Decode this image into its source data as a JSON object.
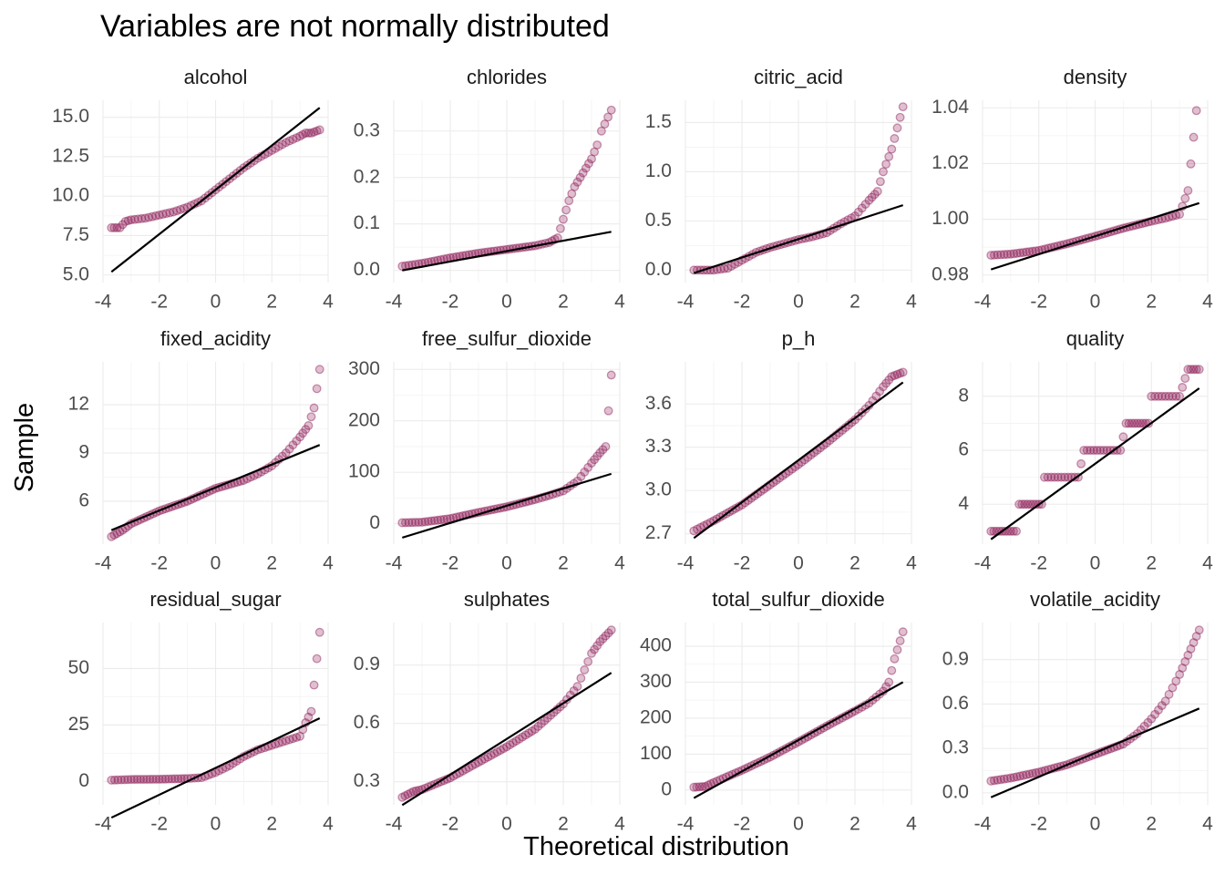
{
  "chart_data": {
    "type": "scatter",
    "subtype": "qq-plot facet grid",
    "title": "Variables are not normally distributed",
    "xlabel": "Theoretical distribution",
    "ylabel": "Sample",
    "xlim": [
      -4,
      4
    ],
    "x_ticks": [
      -4,
      -2,
      0,
      2,
      4
    ],
    "grid": true,
    "point_color": "#8b1a55",
    "line_color": "#000000",
    "panels": [
      {
        "name": "alcohol",
        "yrange": [
          5.0,
          15.6
        ],
        "yticks": [
          5.0,
          7.5,
          10.0,
          12.5,
          15.0
        ],
        "ytick_labels": [
          "5.0",
          "7.5",
          "10.0",
          "12.5",
          "15.0"
        ],
        "line": [
          [
            -3.7,
            5.2
          ],
          [
            3.7,
            15.6
          ]
        ],
        "points": [
          [
            -3.7,
            8.0
          ],
          [
            -3.4,
            8.0
          ],
          [
            -3.2,
            8.4
          ],
          [
            -3.0,
            8.5
          ],
          [
            -2.5,
            8.6
          ],
          [
            -2.0,
            8.8
          ],
          [
            -1.5,
            9.0
          ],
          [
            -1.0,
            9.3
          ],
          [
            -0.5,
            9.7
          ],
          [
            0.0,
            10.4
          ],
          [
            0.5,
            11.1
          ],
          [
            1.0,
            11.8
          ],
          [
            1.5,
            12.4
          ],
          [
            2.0,
            12.9
          ],
          [
            2.5,
            13.4
          ],
          [
            3.0,
            13.8
          ],
          [
            3.2,
            14.0
          ],
          [
            3.4,
            14.0
          ],
          [
            3.7,
            14.2
          ]
        ]
      },
      {
        "name": "chlorides",
        "yrange": [
          -0.01,
          0.35
        ],
        "yticks": [
          0.0,
          0.1,
          0.2,
          0.3
        ],
        "ytick_labels": [
          "0.0",
          "0.1",
          "0.2",
          "0.3"
        ],
        "line": [
          [
            -3.7,
            0.0
          ],
          [
            3.7,
            0.083
          ]
        ],
        "points": [
          [
            -3.7,
            0.009
          ],
          [
            -3.0,
            0.015
          ],
          [
            -2.0,
            0.027
          ],
          [
            -1.0,
            0.037
          ],
          [
            0.0,
            0.045
          ],
          [
            1.0,
            0.053
          ],
          [
            1.5,
            0.06
          ],
          [
            1.8,
            0.07
          ],
          [
            2.0,
            0.11
          ],
          [
            2.2,
            0.15
          ],
          [
            2.4,
            0.18
          ],
          [
            2.6,
            0.2
          ],
          [
            2.8,
            0.22
          ],
          [
            3.0,
            0.24
          ],
          [
            3.2,
            0.27
          ],
          [
            3.35,
            0.3
          ],
          [
            3.7,
            0.345
          ]
        ]
      },
      {
        "name": "citric_acid",
        "yrange": [
          -0.05,
          1.65
        ],
        "yticks": [
          0.0,
          0.5,
          1.0,
          1.5
        ],
        "ytick_labels": [
          "0.0",
          "0.5",
          "1.0",
          "1.5"
        ],
        "line": [
          [
            -3.7,
            -0.03
          ],
          [
            3.7,
            0.66
          ]
        ],
        "points": [
          [
            -3.7,
            0.0
          ],
          [
            -3.0,
            0.0
          ],
          [
            -2.5,
            0.02
          ],
          [
            -2.0,
            0.1
          ],
          [
            -1.5,
            0.18
          ],
          [
            -1.0,
            0.23
          ],
          [
            -0.5,
            0.27
          ],
          [
            0.0,
            0.31
          ],
          [
            0.5,
            0.34
          ],
          [
            1.0,
            0.38
          ],
          [
            1.5,
            0.47
          ],
          [
            2.0,
            0.55
          ],
          [
            2.5,
            0.71
          ],
          [
            2.8,
            0.8
          ],
          [
            3.0,
            1.0
          ],
          [
            3.3,
            1.23
          ],
          [
            3.7,
            1.66
          ]
        ]
      },
      {
        "name": "density",
        "yrange": [
          0.98,
          1.04
        ],
        "yticks": [
          0.98,
          1.0,
          1.02,
          1.04
        ],
        "ytick_labels": [
          "0.98",
          "1.00",
          "1.02",
          "1.04"
        ],
        "line": [
          [
            -3.7,
            0.982
          ],
          [
            3.7,
            1.0058
          ]
        ],
        "points": [
          [
            -3.7,
            0.9871
          ],
          [
            -3.0,
            0.9875
          ],
          [
            -2.0,
            0.9888
          ],
          [
            -1.0,
            0.9912
          ],
          [
            0.0,
            0.9939
          ],
          [
            1.0,
            0.9968
          ],
          [
            2.0,
            0.9993
          ],
          [
            2.5,
            1.0004
          ],
          [
            3.0,
            1.0018
          ],
          [
            3.3,
            1.0103
          ],
          [
            3.6,
            1.039
          ]
        ]
      },
      {
        "name": "fixed_acidity",
        "yrange": [
          3.8,
          14.2
        ],
        "yticks": [
          6,
          9,
          12
        ],
        "ytick_labels": [
          "6",
          "9",
          "12"
        ],
        "line": [
          [
            -3.7,
            4.2
          ],
          [
            3.7,
            9.5
          ]
        ],
        "points": [
          [
            -3.7,
            3.8
          ],
          [
            -3.3,
            4.2
          ],
          [
            -3.0,
            4.6
          ],
          [
            -2.0,
            5.4
          ],
          [
            -1.0,
            6.0
          ],
          [
            0.0,
            6.8
          ],
          [
            1.0,
            7.3
          ],
          [
            1.5,
            7.7
          ],
          [
            2.0,
            8.2
          ],
          [
            2.5,
            9.0
          ],
          [
            3.0,
            10.0
          ],
          [
            3.3,
            10.7
          ],
          [
            3.5,
            11.8
          ],
          [
            3.7,
            14.2
          ]
        ]
      },
      {
        "name": "free_sulfur_dioxide",
        "yrange": [
          -25,
          300
        ],
        "yticks": [
          0,
          100,
          200,
          300
        ],
        "ytick_labels": [
          "0",
          "100",
          "200",
          "300"
        ],
        "line": [
          [
            -3.7,
            -27
          ],
          [
            3.7,
            97
          ]
        ],
        "points": [
          [
            -3.7,
            2
          ],
          [
            -3.0,
            3
          ],
          [
            -2.0,
            10
          ],
          [
            -1.0,
            22
          ],
          [
            0.0,
            33
          ],
          [
            1.0,
            47
          ],
          [
            1.5,
            55
          ],
          [
            2.0,
            64
          ],
          [
            2.5,
            83
          ],
          [
            3.0,
            118
          ],
          [
            3.3,
            138
          ],
          [
            3.5,
            150
          ],
          [
            3.7,
            289
          ]
        ]
      },
      {
        "name": "p_h",
        "yrange": [
          2.68,
          3.84
        ],
        "yticks": [
          2.7,
          3.0,
          3.3,
          3.6
        ],
        "ytick_labels": [
          "2.7",
          "3.0",
          "3.3",
          "3.6"
        ],
        "line": [
          [
            -3.7,
            2.67
          ],
          [
            3.7,
            3.75
          ]
        ],
        "points": [
          [
            -3.7,
            2.72
          ],
          [
            -3.0,
            2.79
          ],
          [
            -2.0,
            2.9
          ],
          [
            -1.0,
            3.04
          ],
          [
            0.0,
            3.18
          ],
          [
            1.0,
            3.33
          ],
          [
            2.0,
            3.49
          ],
          [
            2.5,
            3.59
          ],
          [
            3.0,
            3.72
          ],
          [
            3.3,
            3.79
          ],
          [
            3.7,
            3.82
          ]
        ]
      },
      {
        "name": "quality",
        "yrange": [
          2.8,
          9.0
        ],
        "yticks": [
          4,
          6,
          8
        ],
        "ytick_labels": [
          "4",
          "6",
          "8"
        ],
        "line": [
          [
            -3.7,
            2.7
          ],
          [
            3.7,
            8.3
          ]
        ],
        "points": [
          [
            -3.7,
            3
          ],
          [
            -3.3,
            3
          ],
          [
            -3.0,
            3
          ],
          [
            -2.8,
            3
          ],
          [
            -2.7,
            4
          ],
          [
            -2.3,
            4
          ],
          [
            -1.9,
            4
          ],
          [
            -1.8,
            5
          ],
          [
            -1.2,
            5
          ],
          [
            -0.6,
            5
          ],
          [
            -0.4,
            6
          ],
          [
            0.3,
            6
          ],
          [
            0.9,
            6
          ],
          [
            1.1,
            7
          ],
          [
            1.5,
            7
          ],
          [
            1.9,
            7
          ],
          [
            2.0,
            8
          ],
          [
            2.5,
            8
          ],
          [
            3.0,
            8
          ],
          [
            3.3,
            9
          ],
          [
            3.7,
            9
          ]
        ]
      },
      {
        "name": "residual_sugar",
        "yrange": [
          -7,
          67
        ],
        "yticks": [
          0,
          25,
          50
        ],
        "ytick_labels": [
          "0",
          "25",
          "50"
        ],
        "line": [
          [
            -3.7,
            -16
          ],
          [
            3.7,
            28
          ]
        ],
        "points": [
          [
            -3.7,
            0.6
          ],
          [
            -3.0,
            0.9
          ],
          [
            -2.0,
            1.0
          ],
          [
            -1.0,
            1.3
          ],
          [
            -0.5,
            1.7
          ],
          [
            0.0,
            4
          ],
          [
            0.5,
            7
          ],
          [
            1.0,
            11
          ],
          [
            1.5,
            14
          ],
          [
            2.0,
            16
          ],
          [
            2.5,
            18
          ],
          [
            3.0,
            20
          ],
          [
            3.2,
            26
          ],
          [
            3.4,
            31
          ],
          [
            3.7,
            66
          ]
        ]
      },
      {
        "name": "sulphates",
        "yrange": [
          0.22,
          1.08
        ],
        "yticks": [
          0.3,
          0.6,
          0.9
        ],
        "ytick_labels": [
          "0.3",
          "0.6",
          "0.9"
        ],
        "line": [
          [
            -3.7,
            0.18
          ],
          [
            3.7,
            0.86
          ]
        ],
        "points": [
          [
            -3.7,
            0.22
          ],
          [
            -3.3,
            0.25
          ],
          [
            -3.0,
            0.26
          ],
          [
            -2.0,
            0.32
          ],
          [
            -1.0,
            0.4
          ],
          [
            0.0,
            0.48
          ],
          [
            1.0,
            0.57
          ],
          [
            2.0,
            0.7
          ],
          [
            2.5,
            0.79
          ],
          [
            3.0,
            0.96
          ],
          [
            3.3,
            1.02
          ],
          [
            3.7,
            1.08
          ]
        ]
      },
      {
        "name": "total_sulfur_dioxide",
        "yrange": [
          -20,
          445
        ],
        "yticks": [
          0,
          100,
          200,
          300,
          400
        ],
        "ytick_labels": [
          "0",
          "100",
          "200",
          "300",
          "400"
        ],
        "line": [
          [
            -3.7,
            -22
          ],
          [
            3.7,
            300
          ]
        ],
        "points": [
          [
            -3.7,
            8
          ],
          [
            -3.3,
            10
          ],
          [
            -3.0,
            21
          ],
          [
            -2.0,
            55
          ],
          [
            -1.0,
            92
          ],
          [
            0.0,
            134
          ],
          [
            1.0,
            178
          ],
          [
            2.0,
            220
          ],
          [
            2.5,
            242
          ],
          [
            3.0,
            275
          ],
          [
            3.2,
            300
          ],
          [
            3.4,
            365
          ],
          [
            3.7,
            440
          ]
        ]
      },
      {
        "name": "volatile_acidity",
        "yrange": [
          -0.03,
          1.1
        ],
        "yticks": [
          0.0,
          0.3,
          0.6,
          0.9
        ],
        "ytick_labels": [
          "0.0",
          "0.3",
          "0.6",
          "0.9"
        ],
        "line": [
          [
            -3.7,
            -0.03
          ],
          [
            3.7,
            0.57
          ]
        ],
        "points": [
          [
            -3.7,
            0.08
          ],
          [
            -3.0,
            0.1
          ],
          [
            -2.0,
            0.14
          ],
          [
            -1.0,
            0.19
          ],
          [
            0.0,
            0.26
          ],
          [
            1.0,
            0.33
          ],
          [
            1.5,
            0.4
          ],
          [
            2.0,
            0.5
          ],
          [
            2.5,
            0.62
          ],
          [
            3.0,
            0.8
          ],
          [
            3.3,
            0.93
          ],
          [
            3.7,
            1.1
          ]
        ]
      }
    ]
  }
}
